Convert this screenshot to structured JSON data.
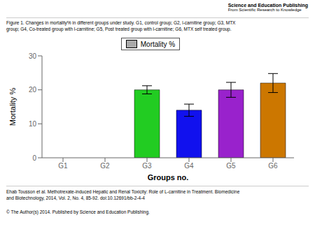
{
  "chart_data": {
    "type": "bar",
    "title": "Figure 1. Changes in mortality% in different groups under study. G1, control group; G2, l-carnitine group; G3, MTX\ngroup; G4, Co-treated group with l-carnitine; G5, Post treated group with l-carnitine; G6, MTX self treated group.",
    "annotations": [
      "Science and Education Publishing",
      "From Scientific Research to Knowledge",
      "Ehab Tousson et al. Methotrexate-induced Hepatic and Renal Toxicity: Role of L-carnitine in Treatment. Biomedicine\nand Biotechnology, 2014, Vol. 2, No. 4, 85-92. doi:10.12691/bb-2-4-4",
      "© The Author(s) 2014. Published by Science and Education Publishing."
    ],
    "categories": [
      "G1",
      "G2",
      "G3",
      "G4",
      "G5",
      "G6"
    ],
    "series": [
      {
        "name": "Mortality %",
        "color": "#aaaaaa",
        "values": [
          0,
          0,
          20,
          14,
          20,
          22
        ],
        "errors": [
          0,
          0,
          1.2,
          1.8,
          2.2,
          2.8
        ],
        "colors": [
          "#cccccc",
          "#cccccc",
          "#22cc22",
          "#1111ee",
          "#9922cc",
          "#cc7700"
        ]
      }
    ],
    "xlabel": "Groups no.",
    "ylabel": "Mortality %",
    "ylim": [
      0,
      30
    ],
    "yticks": [
      0,
      10,
      20,
      30
    ],
    "grid": false,
    "legend": "top"
  }
}
